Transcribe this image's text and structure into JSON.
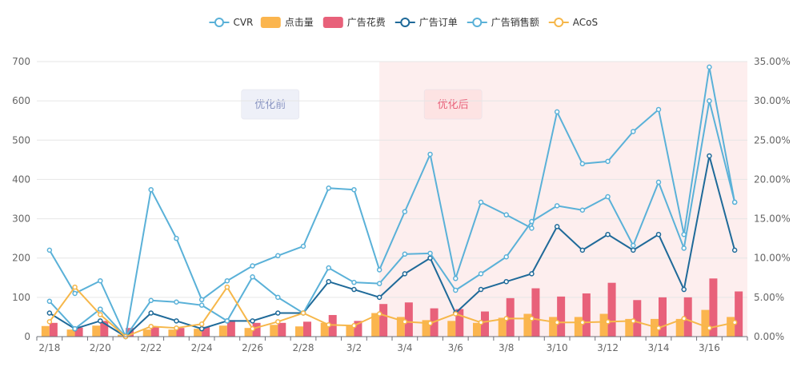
{
  "chart_data": {
    "type": "bar",
    "categories": [
      "2/18",
      "2/19",
      "2/20",
      "2/21",
      "2/22",
      "2/23",
      "2/24",
      "2/25",
      "2/26",
      "2/27",
      "2/28",
      "3/1",
      "3/2",
      "3/3",
      "3/4",
      "3/5",
      "3/6",
      "3/7",
      "3/8",
      "3/9",
      "3/10",
      "3/11",
      "3/12",
      "3/13",
      "3/14",
      "3/15",
      "3/16",
      "3/17"
    ],
    "x_tick_labels": [
      "2/18",
      "2/20",
      "2/22",
      "2/24",
      "2/26",
      "2/28",
      "3/2",
      "3/4",
      "3/6",
      "3/8",
      "3/10",
      "3/12",
      "3/14",
      "3/16"
    ],
    "y_left": {
      "range": [
        0,
        700
      ],
      "ticks": [
        "0",
        "100",
        "200",
        "300",
        "400",
        "500",
        "600",
        "700"
      ]
    },
    "y_right": {
      "range": [
        0,
        35
      ],
      "ticks": [
        "0.00%",
        "5.00%",
        "10.00%",
        "15.00%",
        "20.00%",
        "25.00%",
        "30.00%",
        "35.00%"
      ]
    },
    "legend_position": "top-center",
    "grid": true,
    "series": [
      {
        "name": "CVR",
        "kind": "line",
        "axis": "right",
        "color": "#5ab1d8",
        "values": [
          11.0,
          5.5,
          7.1,
          0.0,
          18.7,
          12.5,
          4.7,
          7.1,
          9.0,
          10.3,
          11.5,
          18.9,
          18.7,
          8.5,
          15.9,
          23.2,
          7.4,
          17.1,
          15.5,
          13.8,
          28.6,
          22.0,
          22.3,
          26.1,
          28.9,
          13.0,
          34.3,
          17.1
        ]
      },
      {
        "name": "点击量",
        "kind": "bar",
        "axis": "left",
        "color": "#fbb54e",
        "values": [
          27,
          18,
          28,
          5,
          18,
          18,
          20,
          28,
          22,
          30,
          26,
          35,
          28,
          60,
          50,
          42,
          40,
          35,
          48,
          58,
          50,
          50,
          58,
          45,
          45,
          45,
          68,
          50
        ]
      },
      {
        "name": "广告花费",
        "kind": "bar",
        "axis": "left",
        "color": "#e8617a",
        "values": [
          35,
          23,
          40,
          22,
          25,
          22,
          25,
          42,
          35,
          35,
          38,
          55,
          40,
          83,
          87,
          72,
          70,
          64,
          98,
          123,
          102,
          110,
          137,
          93,
          100,
          100,
          148,
          115
        ]
      },
      {
        "name": "广告订单",
        "kind": "line",
        "axis": "left",
        "color": "#1f6a99",
        "values": [
          60,
          20,
          40,
          0,
          60,
          40,
          20,
          40,
          40,
          60,
          60,
          140,
          120,
          100,
          160,
          200,
          60,
          120,
          140,
          160,
          280,
          220,
          260,
          220,
          260,
          120,
          460,
          220
        ]
      },
      {
        "name": "广告销售额",
        "kind": "line",
        "axis": "left",
        "color": "#5ab1d8",
        "values": [
          90,
          20,
          70,
          0,
          92,
          88,
          80,
          40,
          152,
          100,
          60,
          175,
          138,
          135,
          210,
          212,
          118,
          160,
          203,
          293,
          333,
          322,
          356,
          232,
          393,
          225,
          600,
          342
        ]
      },
      {
        "name": "ACoS",
        "kind": "line",
        "axis": "right",
        "color": "#f6b74a",
        "values": [
          1.9,
          6.3,
          2.8,
          0.0,
          1.3,
          1.1,
          1.6,
          6.3,
          1.0,
          1.9,
          3.0,
          1.5,
          1.4,
          2.9,
          1.9,
          1.7,
          2.9,
          1.8,
          2.3,
          2.3,
          1.8,
          1.8,
          1.9,
          2.0,
          1.1,
          2.3,
          1.1,
          1.8
        ]
      }
    ],
    "regions": [
      {
        "label": "优化前",
        "start_index": 0,
        "end_index": 13,
        "fill": "transparent",
        "label_bg": "#eef0f8",
        "label_color": "#8a95c2",
        "label_at_index": 9.2
      },
      {
        "label": "优化后",
        "start_index": 13.5,
        "end_index": 28,
        "fill": "#fdeeee",
        "label_bg": "#fde3e3",
        "label_color": "#e8617a",
        "label_at_index": 16.4
      }
    ]
  }
}
